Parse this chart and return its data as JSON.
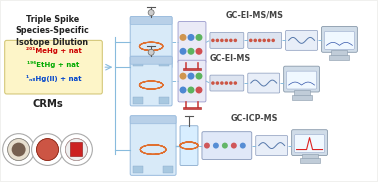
{
  "bg_color": "#f0f0ee",
  "title_lines": [
    "Triple Spike",
    "Species-Specific",
    "Isotope Dilution"
  ],
  "title_fontsize": 5.8,
  "title_fontweight": "bold",
  "spike_box_color": "#fdf5c8",
  "spike_box_edgecolor": "#d4c87a",
  "spike_line1_text": "²⁰¹MeHg + nat",
  "spike_line2_text": "¹⁹⁶EtHg + nat",
  "spike_line3_text": "¹ₙ₈Hg(II) + nat",
  "spike_line1_color": "#cc0000",
  "spike_line2_color": "#00aa00",
  "spike_line3_color": "#0044cc",
  "spike_fontsize": 5.0,
  "crms_label": "CRMs",
  "crms_fontsize": 7.2,
  "crms_fontweight": "bold",
  "label_gc_ei_msms": "GC-EI-MS/MS",
  "label_gc_ei_ms": "GC-EI-MS",
  "label_gc_icp_ms": "GC-ICP-MS",
  "label_fontsize": 5.8,
  "label_fontweight": "bold",
  "label_color": "#444444",
  "arrow_color": "#88bbdd",
  "gc_box_color": "#d8eaf8",
  "gc_box_edgecolor": "#99bbdd",
  "ms_box_color": "#e8ecf4",
  "ms_box_edgecolor": "#9999bb",
  "coil_color": "#e07030",
  "computer_screen_color": "#c8ddf0",
  "computer_body_color": "#d0dce8"
}
